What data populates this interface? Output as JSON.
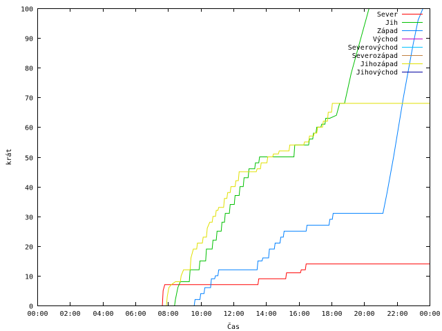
{
  "chart_data": {
    "type": "line",
    "xlabel": "Čas",
    "ylabel": "krát",
    "xlim": [
      0,
      24
    ],
    "ylim": [
      0,
      100
    ],
    "grid": false,
    "legend_position": "top-right",
    "x_ticks": [
      {
        "value": 0,
        "label": "00:00"
      },
      {
        "value": 2,
        "label": "02:00"
      },
      {
        "value": 4,
        "label": "04:00"
      },
      {
        "value": 6,
        "label": "06:00"
      },
      {
        "value": 8,
        "label": "08:00"
      },
      {
        "value": 10,
        "label": "10:00"
      },
      {
        "value": 12,
        "label": "12:00"
      },
      {
        "value": 14,
        "label": "14:00"
      },
      {
        "value": 16,
        "label": "16:00"
      },
      {
        "value": 18,
        "label": "18:00"
      },
      {
        "value": 20,
        "label": "20:00"
      },
      {
        "value": 22,
        "label": "22:00"
      },
      {
        "value": 24,
        "label": "00:00"
      }
    ],
    "y_ticks": [
      {
        "value": 0,
        "label": "0"
      },
      {
        "value": 10,
        "label": "10"
      },
      {
        "value": 20,
        "label": "20"
      },
      {
        "value": 30,
        "label": "30"
      },
      {
        "value": 40,
        "label": "40"
      },
      {
        "value": 50,
        "label": "50"
      },
      {
        "value": 60,
        "label": "60"
      },
      {
        "value": 70,
        "label": "70"
      },
      {
        "value": 80,
        "label": "80"
      },
      {
        "value": 90,
        "label": "90"
      },
      {
        "value": 100,
        "label": "100"
      }
    ],
    "series": [
      {
        "name": "Sever",
        "color": "#ff0000",
        "points": [
          [
            7.65,
            0
          ],
          [
            7.7,
            5
          ],
          [
            7.8,
            7
          ],
          [
            13.5,
            7
          ],
          [
            13.55,
            9
          ],
          [
            15.2,
            9
          ],
          [
            15.25,
            11
          ],
          [
            16.1,
            11
          ],
          [
            16.15,
            12
          ],
          [
            16.4,
            12
          ],
          [
            16.45,
            14
          ],
          [
            24,
            14
          ]
        ]
      },
      {
        "name": "Jih",
        "color": "#00c000",
        "points": [
          [
            8.4,
            0
          ],
          [
            8.45,
            2
          ],
          [
            8.6,
            6
          ],
          [
            8.75,
            8
          ],
          [
            9.3,
            8
          ],
          [
            9.35,
            12
          ],
          [
            9.9,
            12
          ],
          [
            9.95,
            15
          ],
          [
            10.3,
            15
          ],
          [
            10.35,
            19
          ],
          [
            10.7,
            19
          ],
          [
            10.75,
            22
          ],
          [
            10.95,
            22
          ],
          [
            11,
            25
          ],
          [
            11.25,
            25
          ],
          [
            11.3,
            28
          ],
          [
            11.45,
            28
          ],
          [
            11.5,
            31
          ],
          [
            11.75,
            31
          ],
          [
            11.8,
            34
          ],
          [
            12.05,
            34
          ],
          [
            12.1,
            37
          ],
          [
            12.35,
            37
          ],
          [
            12.4,
            40
          ],
          [
            12.6,
            40
          ],
          [
            12.65,
            43
          ],
          [
            12.9,
            43
          ],
          [
            12.95,
            46
          ],
          [
            13.3,
            46
          ],
          [
            13.35,
            48
          ],
          [
            13.55,
            48
          ],
          [
            13.6,
            50
          ],
          [
            15.7,
            50
          ],
          [
            15.75,
            54
          ],
          [
            16.6,
            54
          ],
          [
            16.65,
            56
          ],
          [
            16.85,
            56
          ],
          [
            16.9,
            58
          ],
          [
            17.05,
            58
          ],
          [
            17.1,
            60
          ],
          [
            17.35,
            60
          ],
          [
            17.4,
            61
          ],
          [
            17.6,
            61
          ],
          [
            17.65,
            63
          ],
          [
            17.9,
            63
          ],
          [
            18.3,
            64
          ],
          [
            18.5,
            68
          ],
          [
            18.8,
            68
          ],
          [
            19.2,
            78
          ],
          [
            19.7,
            88
          ],
          [
            20.1,
            96
          ],
          [
            20.3,
            100
          ]
        ]
      },
      {
        "name": "Západ",
        "color": "#0080ff",
        "points": [
          [
            9.6,
            0
          ],
          [
            9.65,
            2
          ],
          [
            9.95,
            2
          ],
          [
            10,
            4
          ],
          [
            10.2,
            4
          ],
          [
            10.25,
            6
          ],
          [
            10.6,
            6
          ],
          [
            10.65,
            9
          ],
          [
            10.85,
            9
          ],
          [
            10.9,
            10
          ],
          [
            11.05,
            10
          ],
          [
            11.1,
            12
          ],
          [
            13.45,
            12
          ],
          [
            13.5,
            15
          ],
          [
            13.75,
            15
          ],
          [
            13.8,
            16
          ],
          [
            14.15,
            16
          ],
          [
            14.2,
            19
          ],
          [
            14.5,
            19
          ],
          [
            14.55,
            21
          ],
          [
            14.85,
            21
          ],
          [
            14.9,
            23
          ],
          [
            15.05,
            23
          ],
          [
            15.1,
            25
          ],
          [
            16.45,
            25
          ],
          [
            16.5,
            27
          ],
          [
            17.85,
            27
          ],
          [
            17.9,
            29
          ],
          [
            18.05,
            29
          ],
          [
            18.1,
            31
          ],
          [
            21.15,
            31
          ],
          [
            21.4,
            38
          ],
          [
            21.6,
            44
          ],
          [
            21.8,
            50
          ],
          [
            22.1,
            60
          ],
          [
            22.4,
            70
          ],
          [
            22.7,
            79
          ],
          [
            23,
            88
          ],
          [
            23.3,
            96
          ],
          [
            23.6,
            100
          ]
        ]
      },
      {
        "name": "Východ",
        "color": "#c000c0",
        "points": []
      },
      {
        "name": "Severovýchod",
        "color": "#00c0ff",
        "points": []
      },
      {
        "name": "Severozápad",
        "color": "#c08040",
        "points": []
      },
      {
        "name": "Jihozápad",
        "color": "#e0e000",
        "points": [
          [
            7.9,
            0
          ],
          [
            7.95,
            3
          ],
          [
            8.05,
            6
          ],
          [
            8.2,
            7
          ],
          [
            8.45,
            8
          ],
          [
            8.75,
            8
          ],
          [
            8.8,
            10
          ],
          [
            8.95,
            12
          ],
          [
            9.35,
            12
          ],
          [
            9.4,
            16
          ],
          [
            9.55,
            19
          ],
          [
            9.75,
            19
          ],
          [
            9.8,
            21
          ],
          [
            10.1,
            21
          ],
          [
            10.15,
            23
          ],
          [
            10.35,
            23
          ],
          [
            10.4,
            26
          ],
          [
            10.55,
            28
          ],
          [
            10.7,
            28
          ],
          [
            10.75,
            30
          ],
          [
            10.9,
            30
          ],
          [
            10.95,
            32
          ],
          [
            11.05,
            32
          ],
          [
            11.1,
            33
          ],
          [
            11.4,
            33
          ],
          [
            11.45,
            36
          ],
          [
            11.6,
            36
          ],
          [
            11.65,
            38
          ],
          [
            11.8,
            38
          ],
          [
            11.85,
            40
          ],
          [
            12.1,
            40
          ],
          [
            12.15,
            42
          ],
          [
            12.3,
            42
          ],
          [
            12.35,
            45
          ],
          [
            13.4,
            45
          ],
          [
            13.45,
            46
          ],
          [
            13.65,
            46
          ],
          [
            13.7,
            48
          ],
          [
            14.05,
            48
          ],
          [
            14.1,
            50
          ],
          [
            14.4,
            50
          ],
          [
            14.45,
            51
          ],
          [
            14.75,
            51
          ],
          [
            14.8,
            52
          ],
          [
            15.4,
            52
          ],
          [
            15.45,
            54
          ],
          [
            16.3,
            54
          ],
          [
            16.35,
            55
          ],
          [
            16.6,
            55
          ],
          [
            16.65,
            57
          ],
          [
            16.9,
            57
          ],
          [
            16.95,
            58
          ],
          [
            17.1,
            58
          ],
          [
            17.15,
            60
          ],
          [
            17.45,
            60
          ],
          [
            17.5,
            62
          ],
          [
            17.75,
            62
          ],
          [
            17.8,
            65
          ],
          [
            18,
            65
          ],
          [
            18.05,
            68
          ],
          [
            24,
            68
          ]
        ]
      },
      {
        "name": "Jihovýchod",
        "color": "#0000a0",
        "points": []
      }
    ]
  }
}
